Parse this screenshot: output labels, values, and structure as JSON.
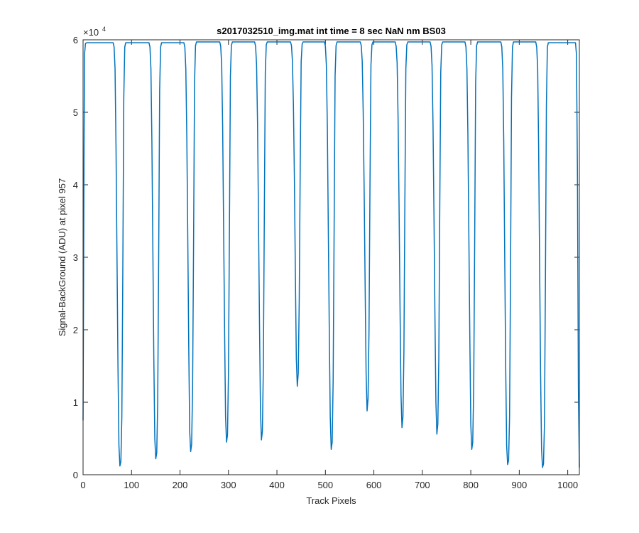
{
  "chart_data": {
    "type": "line",
    "title": "s2017032510_img.mat int time = 8 sec  NaN nm BS03",
    "xlabel": "Track Pixels",
    "ylabel": "Signal-BackGround (ADU) at pixel 957",
    "y_exponent_base": "×10",
    "y_exponent_power": "4",
    "xlim": [
      0,
      1024
    ],
    "ylim": [
      0,
      60000
    ],
    "x_ticks": [
      0,
      100,
      200,
      300,
      400,
      500,
      600,
      700,
      800,
      900,
      1000
    ],
    "x_tick_labels": [
      "0",
      "100",
      "200",
      "300",
      "400",
      "500",
      "600",
      "700",
      "800",
      "900",
      "1000"
    ],
    "y_ticks": [
      0,
      10000,
      20000,
      30000,
      40000,
      50000,
      60000
    ],
    "y_tick_labels": [
      "0",
      "1",
      "2",
      "3",
      "4",
      "5",
      "6"
    ],
    "grid": false,
    "line_color": "#0072bd",
    "plateau_level": 59600,
    "series": [
      {
        "x": [
          0,
          1,
          2,
          3,
          5,
          8,
          62,
          64,
          66,
          68,
          70,
          72,
          74,
          76,
          78,
          80,
          82,
          84,
          86,
          88,
          136,
          138,
          140,
          142,
          144,
          146,
          148,
          150,
          152,
          154,
          156,
          158,
          160,
          162,
          208,
          210,
          212,
          214,
          216,
          218,
          220,
          222,
          224,
          226,
          228,
          230,
          232,
          234,
          282,
          284,
          286,
          288,
          290,
          292,
          294,
          296,
          298,
          300,
          302,
          304,
          306,
          308,
          354,
          356,
          358,
          360,
          362,
          364,
          366,
          368,
          370,
          372,
          374,
          376,
          378,
          380,
          428,
          430,
          432,
          434,
          436,
          438,
          440,
          442,
          444,
          446,
          448,
          450,
          452,
          454,
          498,
          500,
          502,
          504,
          506,
          508,
          510,
          512,
          514,
          516,
          518,
          520,
          522,
          524,
          572,
          574,
          576,
          578,
          580,
          582,
          584,
          586,
          588,
          590,
          592,
          594,
          596,
          598,
          644,
          646,
          648,
          650,
          652,
          654,
          656,
          658,
          660,
          662,
          664,
          666,
          668,
          670,
          716,
          718,
          720,
          722,
          724,
          726,
          728,
          730,
          732,
          734,
          736,
          738,
          740,
          742,
          788,
          790,
          792,
          794,
          796,
          798,
          800,
          802,
          804,
          806,
          808,
          810,
          812,
          814,
          862,
          864,
          866,
          868,
          870,
          872,
          874,
          876,
          878,
          880,
          882,
          884,
          886,
          888,
          934,
          936,
          938,
          940,
          942,
          944,
          946,
          948,
          950,
          952,
          954,
          956,
          958,
          960,
          1016,
          1018,
          1020,
          1022,
          1024
        ],
        "y": [
          7500,
          25000,
          45000,
          58000,
          59500,
          59600,
          59600,
          59000,
          56000,
          45000,
          30000,
          15000,
          4000,
          1200,
          1800,
          8000,
          28000,
          52000,
          59000,
          59600,
          59600,
          59000,
          56000,
          46000,
          31000,
          16000,
          5000,
          2200,
          3000,
          10000,
          30000,
          53000,
          59000,
          59600,
          59600,
          59000,
          56000,
          47000,
          33000,
          18000,
          6000,
          3200,
          4200,
          12000,
          32000,
          54000,
          59200,
          59700,
          59700,
          59100,
          56500,
          48000,
          34000,
          20000,
          8000,
          4500,
          5500,
          14000,
          34000,
          55000,
          59200,
          59700,
          59700,
          59100,
          56500,
          48500,
          35000,
          21000,
          9000,
          4800,
          6000,
          15000,
          36000,
          55500,
          59300,
          59700,
          59700,
          59200,
          57000,
          51000,
          41000,
          28000,
          16000,
          12200,
          14000,
          24000,
          42000,
          57000,
          59400,
          59700,
          59700,
          59100,
          56500,
          48000,
          34000,
          20000,
          8000,
          3500,
          4500,
          13000,
          34000,
          55000,
          59200,
          59700,
          59700,
          59200,
          57000,
          50000,
          39000,
          26000,
          14000,
          8800,
          10500,
          20000,
          40000,
          56500,
          59300,
          59700,
          59700,
          59100,
          56800,
          49000,
          37000,
          23000,
          11000,
          6500,
          8000,
          17000,
          38000,
          56000,
          59300,
          59700,
          59700,
          59100,
          56500,
          48500,
          36000,
          22000,
          10000,
          5600,
          7000,
          16000,
          37000,
          55500,
          59300,
          59700,
          59700,
          59000,
          56000,
          47000,
          33000,
          19000,
          7000,
          3500,
          4500,
          12000,
          32000,
          54000,
          59200,
          59700,
          59700,
          59000,
          56000,
          46000,
          30000,
          15000,
          4000,
          1400,
          2000,
          8000,
          28000,
          52000,
          59000,
          59700,
          59700,
          59000,
          56000,
          45000,
          29000,
          14000,
          3500,
          1000,
          1500,
          7000,
          27000,
          51000,
          59000,
          59600,
          59600,
          58000,
          42000,
          12000,
          1000
        ]
      }
    ]
  }
}
